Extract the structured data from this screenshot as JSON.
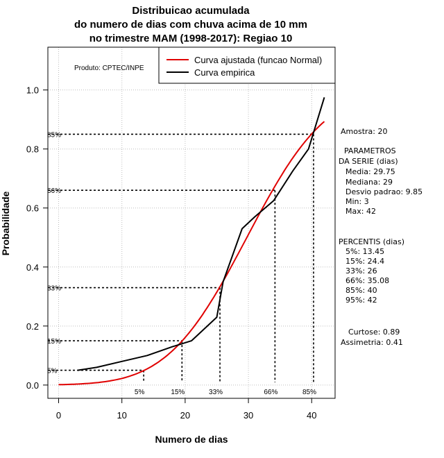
{
  "chart_data": {
    "type": "line",
    "title": [
      "Distribuicao acumulada",
      "do numero de dias com chuva acima de 10 mm",
      "no trimestre MAM (1998-2017): Regiao 10"
    ],
    "xlabel": "Numero de dias",
    "ylabel": "Probabilidade",
    "xlim": [
      -1.7,
      43.7
    ],
    "ylim": [
      -0.045,
      1.145
    ],
    "x_ticks": [
      0,
      10,
      20,
      30,
      40
    ],
    "x_tick_labels": [
      "0",
      "10",
      "20",
      "30",
      "40"
    ],
    "y_ticks": [
      0.0,
      0.2,
      0.4,
      0.6,
      0.8,
      1.0
    ],
    "y_tick_labels": [
      "0.0",
      "0.2",
      "0.4",
      "0.6",
      "0.8",
      "1.0"
    ],
    "grid": true,
    "legend": [
      "Curva ajustada (funcao Normal)",
      "Curva empirica"
    ],
    "legend_position": "top-right",
    "credit": "Produto: CPTEC/INPE",
    "series": [
      {
        "name": "Curva ajustada (funcao Normal)",
        "color": "#e00000",
        "distribution": "normal",
        "mean": 29.75,
        "sd": 9.85,
        "x_range": [
          0,
          42
        ]
      },
      {
        "name": "Curva empirica",
        "color": "#000000",
        "x": [
          3,
          6,
          10,
          14,
          18,
          21,
          25,
          26,
          29,
          31,
          34,
          37,
          39.5,
          42
        ],
        "y": [
          0.05,
          0.06,
          0.08,
          0.1,
          0.13,
          0.15,
          0.23,
          0.35,
          0.53,
          0.57,
          0.625,
          0.725,
          0.8,
          0.975
        ]
      }
    ],
    "percentile_markers": [
      {
        "label": "5%",
        "x": 13.45,
        "p": 0.05
      },
      {
        "label": "15%",
        "x": 19.5,
        "p": 0.15
      },
      {
        "label": "33%",
        "x": 25.5,
        "p": 0.33
      },
      {
        "label": "66%",
        "x": 34.2,
        "p": 0.66
      },
      {
        "label": "85%",
        "x": 40.3,
        "p": 0.85
      }
    ],
    "summary": {
      "amostra": "Amostra: 20",
      "param_title_1": "PARAMETROS",
      "param_title_2": "DA SERIE (dias)",
      "media": "Media: 29.75",
      "mediana": "Mediana: 29",
      "desvio": "Desvio padrao: 9.85",
      "min": "Min: 3",
      "max": "Max: 42",
      "percentis_title": "PERCENTIS (dias)",
      "p5": "5%: 13.45",
      "p15": "15%: 24.4",
      "p33": "33%: 26",
      "p66": "66%: 35.08",
      "p85": "85%: 40",
      "p95": "95%: 42",
      "curtose": "Curtose: 0.89",
      "assimetria": "Assimetria: 0.41"
    }
  }
}
